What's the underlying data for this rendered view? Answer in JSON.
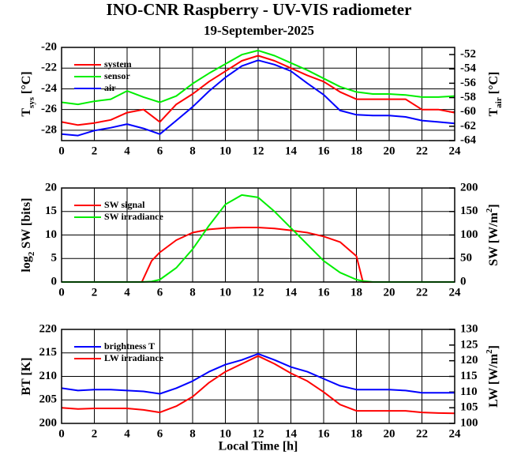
{
  "chart_data": [
    {
      "type": "line",
      "title": "INO-CNR Raspberry - UV-VIS radiometer",
      "subtitle": "19-September-2025",
      "x": [
        0,
        1,
        2,
        3,
        4,
        5,
        6,
        7,
        8,
        9,
        10,
        11,
        12,
        13,
        14,
        15,
        16,
        17,
        18,
        19,
        20,
        21,
        22,
        23,
        24
      ],
      "xlim": [
        0,
        24
      ],
      "xticks": [
        0,
        2,
        4,
        6,
        8,
        10,
        12,
        14,
        16,
        18,
        20,
        22,
        24
      ],
      "ylim": [
        -29,
        -20
      ],
      "yticks": [
        -28,
        -26,
        -24,
        -22,
        -20
      ],
      "y2lim": [
        -64,
        -51
      ],
      "y2ticks": [
        -64,
        -62,
        -60,
        -58,
        -56,
        -54,
        -52
      ],
      "ylabel": [
        "T",
        "sys",
        " [°C]"
      ],
      "y2label": [
        "T",
        "air",
        " [°C]"
      ],
      "grid": true,
      "series": [
        {
          "name": "system",
          "color": "#ff0000",
          "values": [
            -27.2,
            -27.5,
            -27.3,
            -27,
            -26.3,
            -26,
            -27.2,
            -25.5,
            -24.5,
            -23.3,
            -22.3,
            -21.3,
            -20.8,
            -21.3,
            -22,
            -22.7,
            -23.3,
            -24.3,
            -25,
            -25,
            -25,
            -25,
            -26,
            -26,
            -26.3
          ]
        },
        {
          "name": "sensor",
          "color": "#00ee00",
          "values": [
            -25.3,
            -25.5,
            -25.2,
            -25,
            -24.2,
            -24.8,
            -25.3,
            -24.7,
            -23.5,
            -22.5,
            -21.6,
            -20.7,
            -20.3,
            -20.8,
            -21.5,
            -22.2,
            -23,
            -23.8,
            -24.3,
            -24.5,
            -24.5,
            -24.6,
            -24.8,
            -24.8,
            -24.7
          ]
        },
        {
          "name": "air",
          "color": "#0000ff",
          "axis": "y2",
          "values": [
            -63.1,
            -63.3,
            -62.6,
            -62.2,
            -61.7,
            -62.3,
            -63.1,
            -61.2,
            -59.3,
            -57.1,
            -55.2,
            -53.6,
            -52.8,
            -53.4,
            -54.3,
            -56,
            -57.6,
            -59.8,
            -60.4,
            -60.5,
            -60.5,
            -60.7,
            -61.2,
            -61.4,
            -61.6
          ]
        }
      ]
    },
    {
      "type": "line",
      "x": [
        0,
        4,
        4.9,
        5.5,
        6,
        7,
        8,
        9,
        10,
        11,
        12,
        13,
        14,
        15,
        16,
        17,
        18,
        18.4,
        19,
        20,
        22,
        24
      ],
      "xlim": [
        0,
        24
      ],
      "xticks": [
        0,
        2,
        4,
        6,
        8,
        10,
        12,
        14,
        16,
        18,
        20,
        22,
        24
      ],
      "ylim": [
        0,
        20
      ],
      "yticks": [
        0,
        5,
        10,
        15,
        20
      ],
      "y2lim": [
        0,
        200
      ],
      "y2ticks": [
        0,
        50,
        100,
        150,
        200
      ],
      "ylabel": [
        "log",
        "2",
        " SW [bits]"
      ],
      "y2label": [
        "SW [W/m",
        "2",
        "]"
      ],
      "grid": true,
      "series": [
        {
          "name": "SW signal",
          "color": "#ff0000",
          "values": [
            0,
            0,
            0,
            4.5,
            6.3,
            8.9,
            10.5,
            11.2,
            11.5,
            11.6,
            11.6,
            11.4,
            11,
            10.5,
            9.7,
            8.5,
            5.5,
            0,
            0,
            0,
            0,
            0
          ]
        },
        {
          "name": "SW irradiance",
          "color": "#00ee00",
          "axis": "y2",
          "values": [
            0,
            0,
            0,
            1,
            5,
            30,
            70,
            120,
            165,
            185,
            180,
            150,
            115,
            80,
            45,
            20,
            5,
            2,
            0,
            0,
            0,
            0
          ]
        }
      ]
    },
    {
      "type": "line",
      "x": [
        0,
        1,
        2,
        3,
        4,
        5,
        6,
        7,
        8,
        9,
        10,
        11,
        12,
        13,
        14,
        15,
        16,
        17,
        18,
        19,
        20,
        21,
        22,
        23,
        24
      ],
      "xlim": [
        0,
        24
      ],
      "xticks": [
        0,
        2,
        4,
        6,
        8,
        10,
        12,
        14,
        16,
        18,
        20,
        22,
        24
      ],
      "ylim": [
        200,
        220
      ],
      "yticks": [
        200,
        205,
        210,
        215,
        220
      ],
      "y2lim": [
        100,
        130
      ],
      "y2ticks": [
        100,
        105,
        110,
        115,
        120,
        125,
        130
      ],
      "ylabel": [
        "BT [K]"
      ],
      "y2label": [
        "LW [W/m",
        "2",
        "]"
      ],
      "xlabel": "Local Time [h]",
      "grid": true,
      "series": [
        {
          "name": "brightness T",
          "color": "#0000ff",
          "values": [
            207.5,
            207,
            207.2,
            207.2,
            207,
            206.8,
            206.3,
            207.5,
            209,
            211,
            212.5,
            213.5,
            214.8,
            213.5,
            212,
            211,
            209.5,
            208,
            207.2,
            207.2,
            207.2,
            207,
            206.5,
            206.5,
            206.5
          ]
        },
        {
          "name": "LW irradiance",
          "color": "#ff0000",
          "axis": "y2",
          "values": [
            105,
            104.6,
            104.8,
            104.8,
            104.8,
            104.3,
            103.5,
            105.5,
            108.5,
            113,
            116.5,
            119,
            121.5,
            119,
            116,
            113.5,
            110,
            106,
            104,
            104,
            104,
            104,
            103.5,
            103.3,
            103.2
          ]
        }
      ]
    }
  ]
}
